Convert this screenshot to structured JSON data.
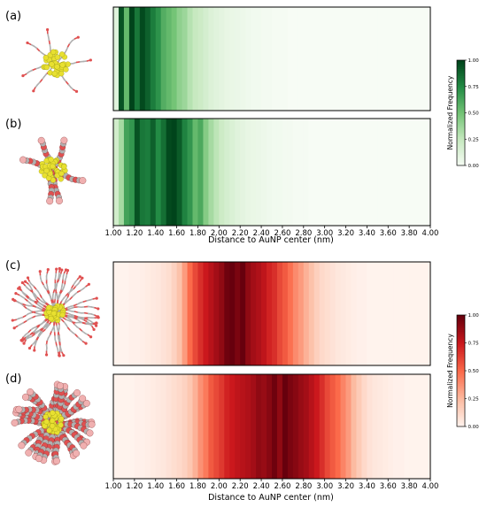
{
  "panels": [
    "(a)",
    "(b)",
    "(c)",
    "(d)"
  ],
  "colors": {
    "green_scale": [
      "#f7fcf5",
      "#c7e9c0",
      "#74c476",
      "#238b45",
      "#00441b"
    ],
    "red_scale": [
      "#fff5f0",
      "#fcbba1",
      "#fb6a4a",
      "#cb181d",
      "#67000d"
    ],
    "gold": "#e8e030",
    "oxygen": "#e05050",
    "carbon": "#b0b0b0"
  },
  "molecule_icons": [
    "short-ligand-aunp-icon",
    "short-ligand-spacefill-aunp-icon",
    "dense-ligand-aunp-icon",
    "dense-ligand-spacefill-aunp-icon"
  ],
  "chart_data": [
    {
      "type": "heatmap",
      "panel": "(a)",
      "colormap": "Greens",
      "x_start": 1.0,
      "x_step": 0.05,
      "values": [
        0.12,
        0.95,
        0.55,
        1.0,
        0.82,
        0.98,
        0.9,
        0.8,
        0.72,
        0.6,
        0.55,
        0.5,
        0.42,
        0.38,
        0.3,
        0.25,
        0.22,
        0.18,
        0.14,
        0.12,
        0.1,
        0.08,
        0.07,
        0.06,
        0.05,
        0.04,
        0.03,
        0.03,
        0.02,
        0.02,
        0.01,
        0.01,
        0.01,
        0,
        0,
        0,
        0,
        0,
        0,
        0,
        0,
        0,
        0,
        0,
        0,
        0,
        0,
        0,
        0,
        0,
        0,
        0,
        0,
        0,
        0,
        0,
        0,
        0,
        0,
        0
      ],
      "xlim": [
        1.0,
        4.0
      ],
      "xticks": [],
      "xlabel": "",
      "colorbar": {
        "label": "Normalized Frequency",
        "ticks": [
          "0.00",
          "0.25",
          "0.50",
          "0.75",
          "1.00"
        ]
      }
    },
    {
      "type": "heatmap",
      "panel": "(b)",
      "colormap": "Greens",
      "x_start": 1.0,
      "x_step": 0.05,
      "values": [
        0.2,
        0.35,
        0.65,
        0.7,
        0.95,
        0.82,
        0.8,
        0.9,
        0.75,
        0.85,
        0.98,
        1.0,
        0.92,
        0.78,
        0.7,
        0.55,
        0.62,
        0.45,
        0.35,
        0.28,
        0.22,
        0.18,
        0.15,
        0.12,
        0.1,
        0.08,
        0.07,
        0.06,
        0.05,
        0.04,
        0.03,
        0.03,
        0.02,
        0.02,
        0.01,
        0.01,
        0.01,
        0,
        0,
        0,
        0,
        0,
        0,
        0,
        0,
        0,
        0,
        0,
        0,
        0,
        0,
        0,
        0,
        0,
        0,
        0,
        0,
        0,
        0,
        0
      ],
      "xlim": [
        1.0,
        4.0
      ],
      "xticks": [
        "1.00",
        "1.20",
        "1.40",
        "1.60",
        "1.80",
        "2.00",
        "2.20",
        "2.40",
        "2.60",
        "2.80",
        "3.00",
        "3.20",
        "3.40",
        "3.60",
        "3.80",
        "4.00"
      ],
      "xlabel": "Distance to AuNP center (nm)"
    },
    {
      "type": "heatmap",
      "panel": "(c)",
      "colormap": "Reds",
      "x_start": 1.0,
      "x_step": 0.05,
      "values": [
        0.01,
        0.01,
        0.01,
        0.02,
        0.02,
        0.03,
        0.04,
        0.05,
        0.06,
        0.08,
        0.1,
        0.15,
        0.22,
        0.35,
        0.5,
        0.6,
        0.68,
        0.75,
        0.8,
        0.85,
        0.9,
        0.98,
        1.0,
        0.95,
        1.0,
        0.9,
        0.85,
        0.82,
        0.78,
        0.72,
        0.68,
        0.6,
        0.55,
        0.48,
        0.4,
        0.35,
        0.28,
        0.22,
        0.16,
        0.12,
        0.1,
        0.08,
        0.06,
        0.05,
        0.04,
        0.03,
        0.02,
        0.02,
        0.01,
        0.01,
        0.01,
        0.01,
        0.01,
        0.01,
        0.01,
        0.01,
        0.01,
        0.01,
        0.01,
        0.01
      ],
      "xlim": [
        1.0,
        4.0
      ],
      "xticks": [],
      "xlabel": "",
      "colorbar": {
        "label": "Normalized Frequency",
        "ticks": [
          "0.00",
          "0.25",
          "0.50",
          "0.75",
          "1.00"
        ]
      }
    },
    {
      "type": "heatmap",
      "panel": "(d)",
      "colormap": "Reds",
      "x_start": 1.0,
      "x_step": 0.05,
      "values": [
        0.01,
        0.01,
        0.01,
        0.01,
        0.02,
        0.02,
        0.03,
        0.04,
        0.05,
        0.06,
        0.08,
        0.1,
        0.12,
        0.15,
        0.2,
        0.28,
        0.38,
        0.45,
        0.55,
        0.6,
        0.65,
        0.72,
        0.75,
        0.78,
        0.8,
        0.82,
        0.85,
        0.9,
        0.88,
        0.92,
        0.98,
        0.9,
        1.0,
        0.95,
        0.92,
        0.88,
        0.85,
        0.8,
        0.75,
        0.68,
        0.6,
        0.55,
        0.5,
        0.42,
        0.35,
        0.25,
        0.18,
        0.12,
        0.08,
        0.06,
        0.05,
        0.04,
        0.03,
        0.02,
        0.02,
        0.01,
        0.01,
        0.01,
        0.01,
        0.01
      ],
      "xlim": [
        1.0,
        4.0
      ],
      "xticks": [
        "1.00",
        "1.20",
        "1.40",
        "1.60",
        "1.80",
        "2.00",
        "2.20",
        "2.40",
        "2.60",
        "2.80",
        "3.00",
        "3.20",
        "3.40",
        "3.60",
        "3.80",
        "4.00"
      ],
      "xlabel": "Distance to AuNP center (nm)"
    }
  ]
}
